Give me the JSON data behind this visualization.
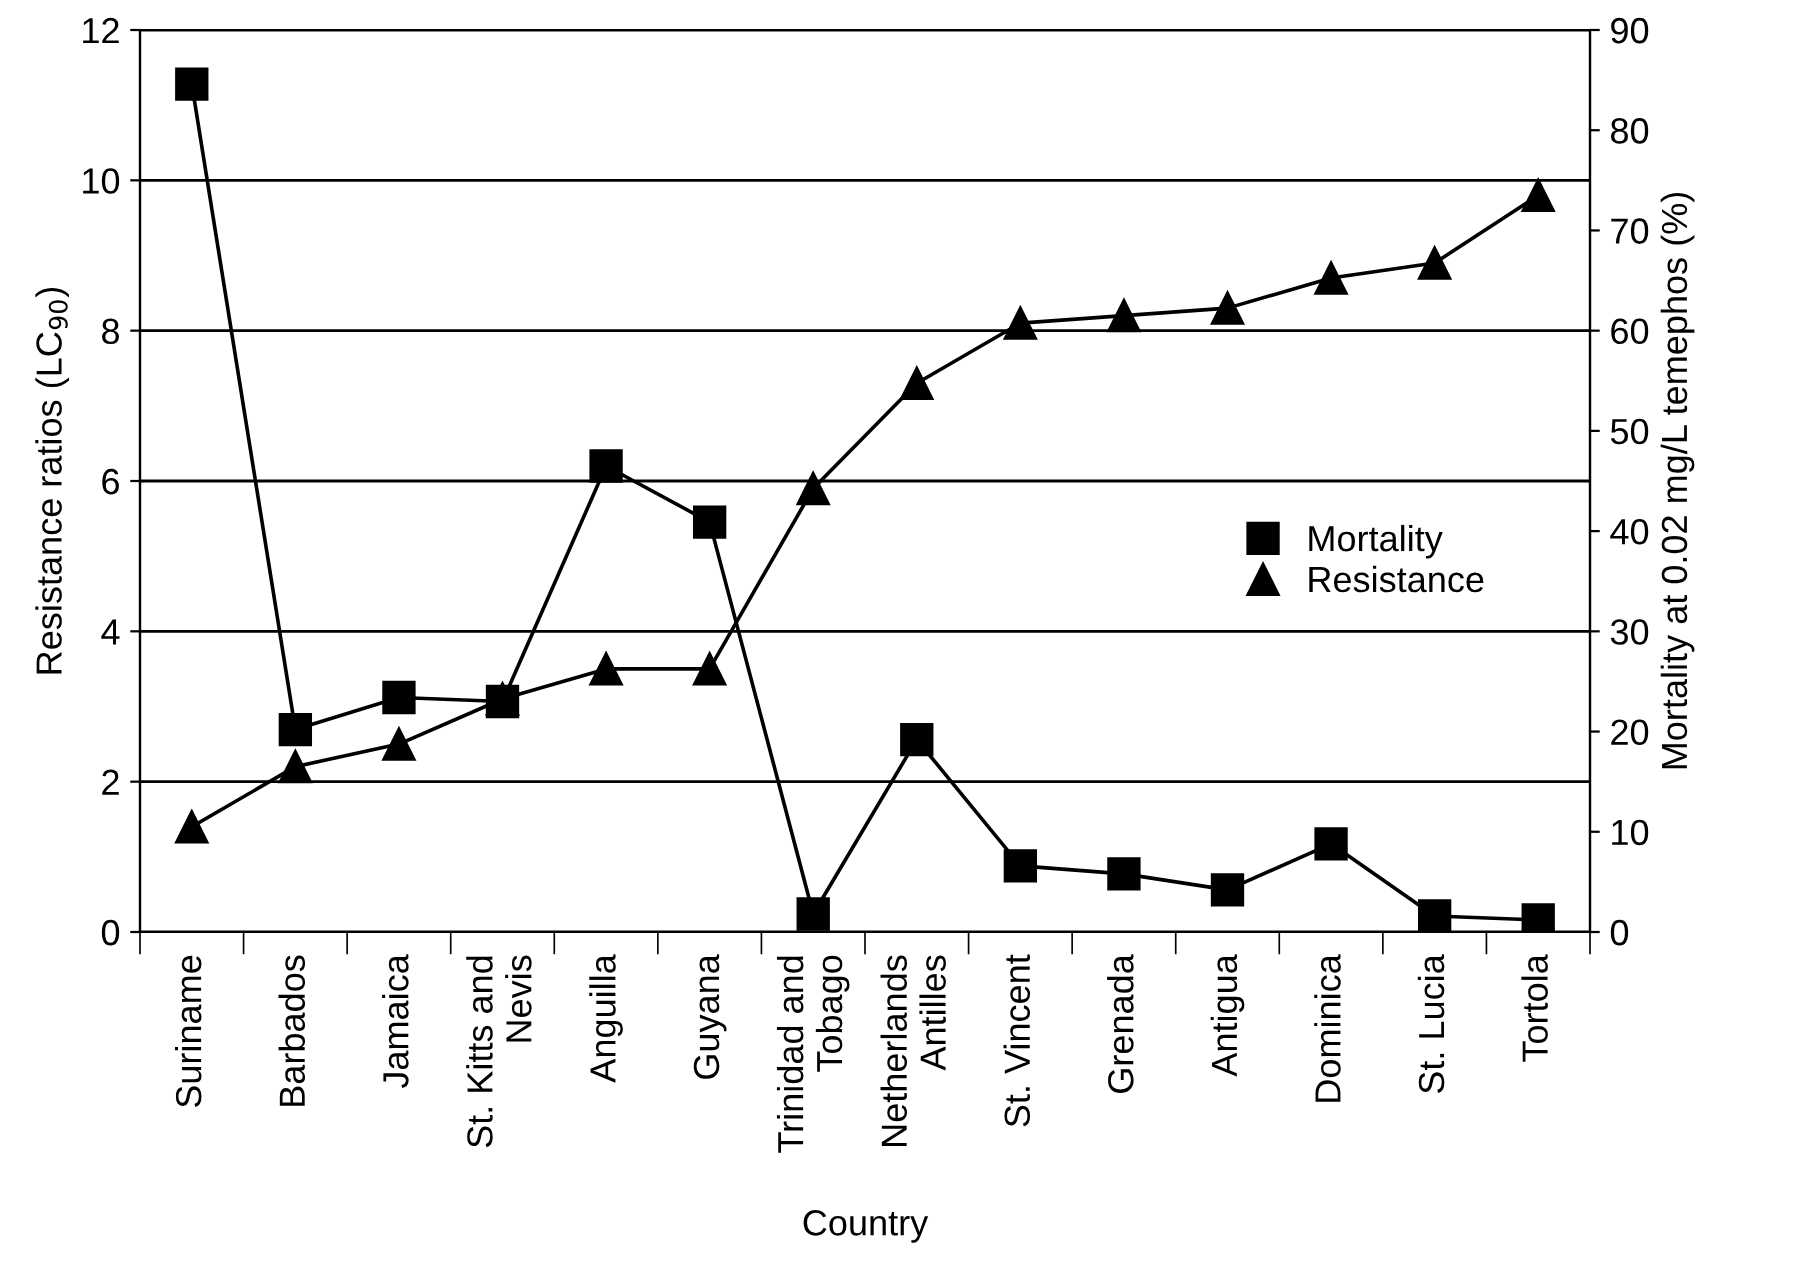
{
  "chart_data": {
    "type": "line",
    "xlabel": "Country",
    "ylabel": "Resistance ratios (LC$_{90}$)",
    "y2label": "Mortality at 0.02 mg/L temephos (%)",
    "categories": [
      "Suriname",
      "Barbados",
      "Jamaica",
      "St. Kitts and\nNevis",
      "Anguilla",
      "Guyana",
      "Trinidad and\nTobago",
      "Netherlands\nAntilles",
      "St. Vincent",
      "Grenada",
      "Antigua",
      "Dominica",
      "St. Lucia",
      "Tortola"
    ],
    "series": [
      {
        "name": "Mortality",
        "color": "#000000",
        "marker": "square",
        "axis": "y2",
        "values": [
          84.6,
          20.2,
          23.4,
          23.0,
          46.5,
          40.9,
          1.8,
          19.2,
          6.6,
          5.8,
          4.2,
          8.8,
          1.6,
          1.2
        ]
      },
      {
        "name": "Resistance",
        "color": "#000000",
        "marker": "triangle",
        "values": [
          1.4,
          2.2,
          2.5,
          3.1,
          3.5,
          3.5,
          5.9,
          7.3,
          8.1,
          8.2,
          8.3,
          8.7,
          8.9,
          9.8
        ]
      }
    ],
    "ylim": [
      0,
      12
    ],
    "yticks": [
      0,
      2,
      4,
      6,
      8,
      10,
      12
    ],
    "y2lim": [
      0,
      90
    ],
    "y2ticks": [
      0,
      10,
      20,
      30,
      40,
      50,
      60,
      70,
      80,
      90
    ],
    "grid": "y",
    "legend": "center right",
    "line_style": "solid"
  }
}
